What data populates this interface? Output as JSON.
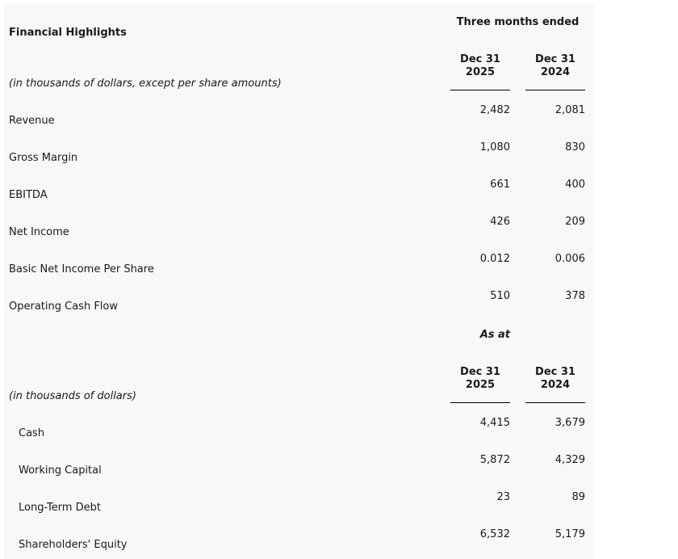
{
  "table_title": "Financial Highlights",
  "section1": {
    "header": "Three months ended",
    "units": "(in thousands of dollars, except per share amounts)",
    "col1": {
      "line1": "Dec 31",
      "line2": "2025"
    },
    "col2": {
      "line1": "Dec 31",
      "line2": "2024"
    },
    "rows": [
      {
        "label": "Revenue",
        "v2025": "2,482",
        "v2024": "2,081"
      },
      {
        "label": "Gross Margin",
        "v2025": "1,080",
        "v2024": "830"
      },
      {
        "label": "EBITDA",
        "v2025": "661",
        "v2024": "400"
      },
      {
        "label": "Net Income",
        "v2025": "426",
        "v2024": "209"
      },
      {
        "label": "Basic Net Income Per Share",
        "v2025": "0.012",
        "v2024": "0.006"
      },
      {
        "label": "Operating Cash Flow",
        "v2025": "510",
        "v2024": "378"
      }
    ]
  },
  "section2": {
    "header": "As at",
    "units": "(in thousands of dollars)",
    "col1": {
      "line1": "Dec 31",
      "line2": "2025"
    },
    "col2": {
      "line1": "Dec 31",
      "line2": "2024"
    },
    "rows": [
      {
        "label": "Cash",
        "v2025": "4,415",
        "v2024": "3,679"
      },
      {
        "label": "Working Capital",
        "v2025": "5,872",
        "v2024": "4,329"
      },
      {
        "label": "Long-Term Debt",
        "v2025": "23",
        "v2024": "89"
      },
      {
        "label": "Shareholders' Equity",
        "v2025": "6,532",
        "v2024": "5,179"
      }
    ]
  }
}
